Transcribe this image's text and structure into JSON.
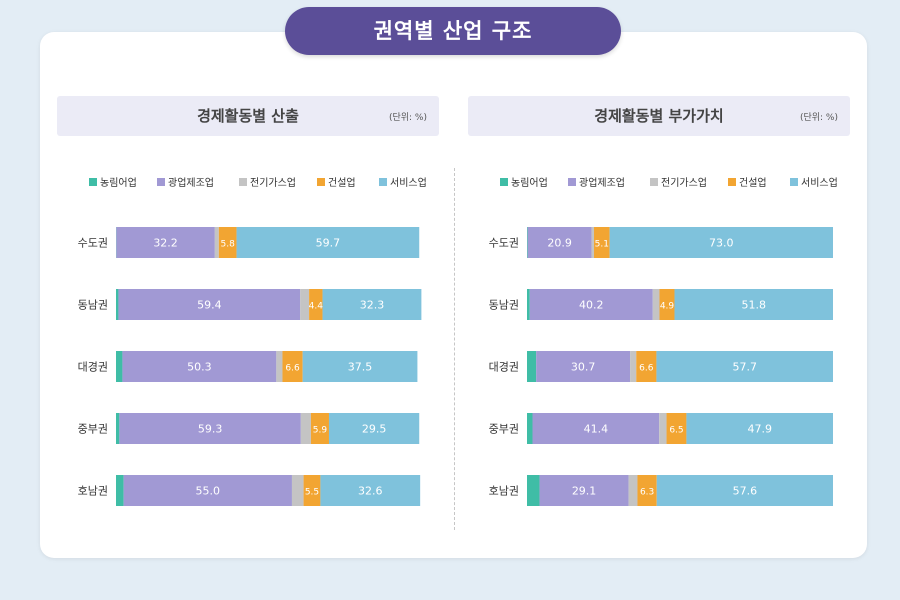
{
  "page": {
    "title": "권역별 산업 구조"
  },
  "colors": {
    "농림어업": "#3fbda6",
    "광업제조업": "#a199d4",
    "전기가스업": "#c4c4c4",
    "건설업": "#f2a532",
    "서비스업": "#7fc2dc",
    "background": "#e3edf5",
    "title_bg": "#5b4e98",
    "panel_header_bg": "#ebebf6"
  },
  "chart_data": [
    {
      "type": "bar",
      "stacked": true,
      "orientation": "horizontal",
      "title": "경제활동별 산출",
      "unit": "(단위: %)",
      "categories": [
        "수도권",
        "동남권",
        "대경권",
        "중부권",
        "호남권"
      ],
      "legend_position": "top",
      "series": [
        {
          "name": "농림어업",
          "values": [
            0.1,
            0.8,
            2.1,
            1.1,
            2.5
          ]
        },
        {
          "name": "광업제조업",
          "values": [
            32.2,
            59.4,
            50.3,
            59.3,
            55.0
          ]
        },
        {
          "name": "전기가스업",
          "values": [
            1.3,
            2.9,
            2.0,
            3.3,
            3.8
          ]
        },
        {
          "name": "건설업",
          "values": [
            5.8,
            4.4,
            6.6,
            5.9,
            5.5
          ]
        },
        {
          "name": "서비스업",
          "values": [
            59.7,
            32.3,
            37.5,
            29.5,
            32.6
          ]
        }
      ],
      "labeled_series": [
        "광업제조업",
        "건설업",
        "서비스업"
      ],
      "xlim": [
        0,
        100
      ]
    },
    {
      "type": "bar",
      "stacked": true,
      "orientation": "horizontal",
      "title": "경제활동별 부가가치",
      "unit": "(단위: %)",
      "categories": [
        "수도권",
        "동남권",
        "대경권",
        "중부권",
        "호남권"
      ],
      "legend_position": "top",
      "series": [
        {
          "name": "농림어업",
          "values": [
            0.2,
            0.9,
            3.0,
            1.8,
            4.1
          ]
        },
        {
          "name": "광업제조업",
          "values": [
            20.9,
            40.2,
            30.7,
            41.4,
            29.1
          ]
        },
        {
          "name": "전기가스업",
          "values": [
            0.8,
            2.2,
            2.0,
            2.4,
            2.9
          ]
        },
        {
          "name": "건설업",
          "values": [
            5.1,
            4.9,
            6.6,
            6.5,
            6.3
          ]
        },
        {
          "name": "서비스업",
          "values": [
            73.0,
            51.8,
            57.7,
            47.9,
            57.6
          ]
        }
      ],
      "labeled_series": [
        "광업제조업",
        "건설업",
        "서비스업"
      ],
      "xlim": [
        0,
        100
      ]
    }
  ]
}
